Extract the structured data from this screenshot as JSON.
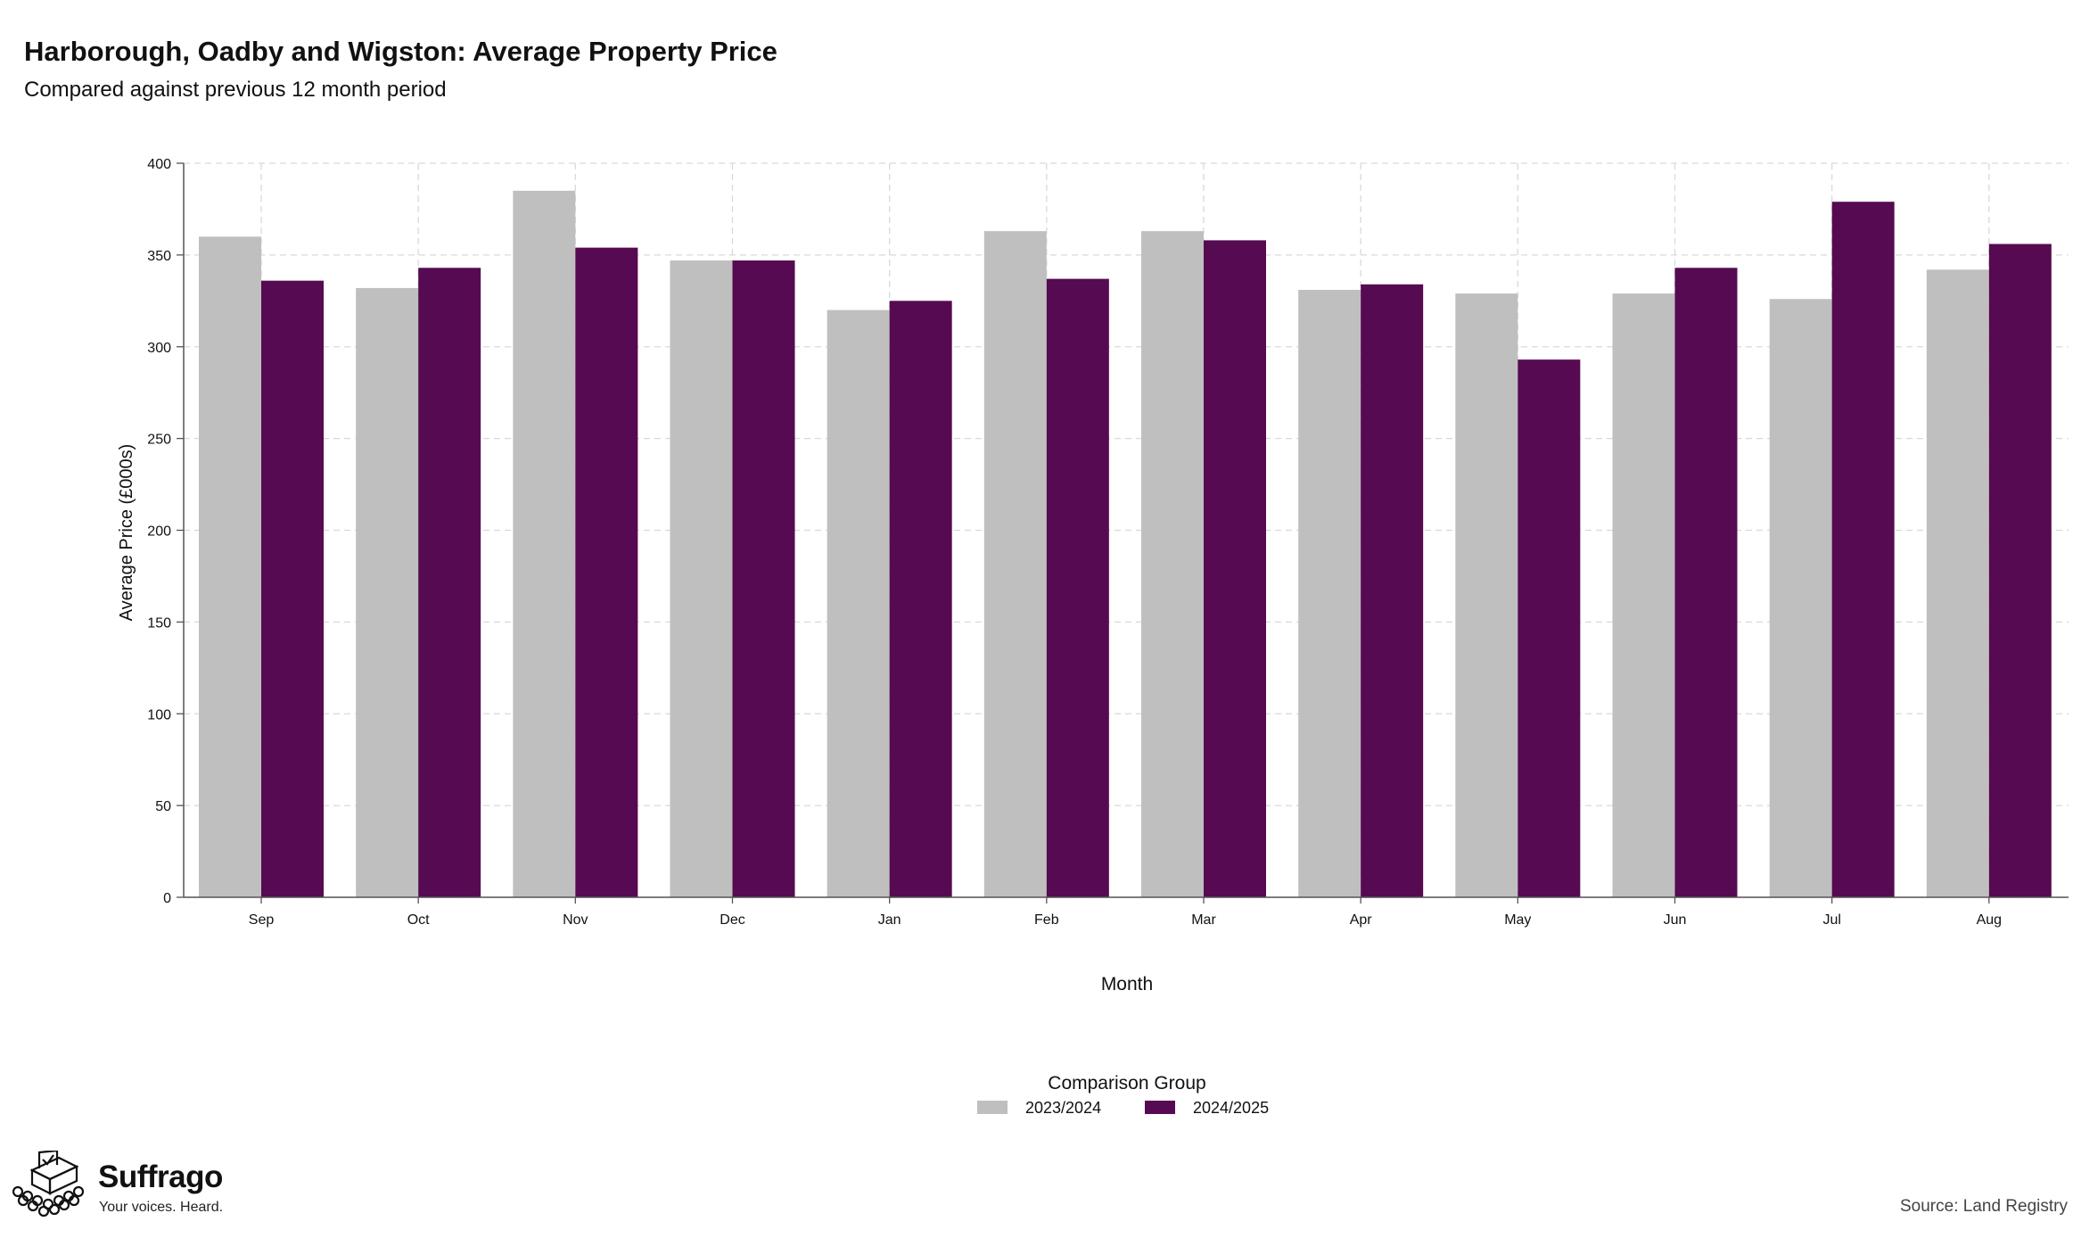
{
  "brand": {
    "name": "Suffrago",
    "tagline": "Your voices. Heard."
  },
  "source_text": "Source: Land Registry",
  "chart_data": {
    "type": "bar",
    "title": "Harborough, Oadby and Wigston: Average Property Price",
    "subtitle": "Compared against previous 12 month period",
    "xlabel": "Month",
    "ylabel": "Average Price (£000s)",
    "ylim": [
      0,
      400
    ],
    "yticks": [
      0,
      50,
      100,
      150,
      200,
      250,
      300,
      350,
      400
    ],
    "grid": true,
    "legend": {
      "title": "Comparison Group",
      "placement": "bottom-center"
    },
    "categories": [
      "Sep",
      "Oct",
      "Nov",
      "Dec",
      "Jan",
      "Feb",
      "Mar",
      "Apr",
      "May",
      "Jun",
      "Jul",
      "Aug"
    ],
    "series": [
      {
        "name": "2023/2024",
        "color": "#bfbfbf",
        "values": [
          360,
          332,
          385,
          347,
          320,
          363,
          363,
          331,
          329,
          329,
          326,
          342
        ]
      },
      {
        "name": "2024/2025",
        "color": "#560a51",
        "values": [
          336,
          343,
          354,
          347,
          325,
          337,
          358,
          334,
          293,
          343,
          379,
          356
        ]
      }
    ]
  }
}
